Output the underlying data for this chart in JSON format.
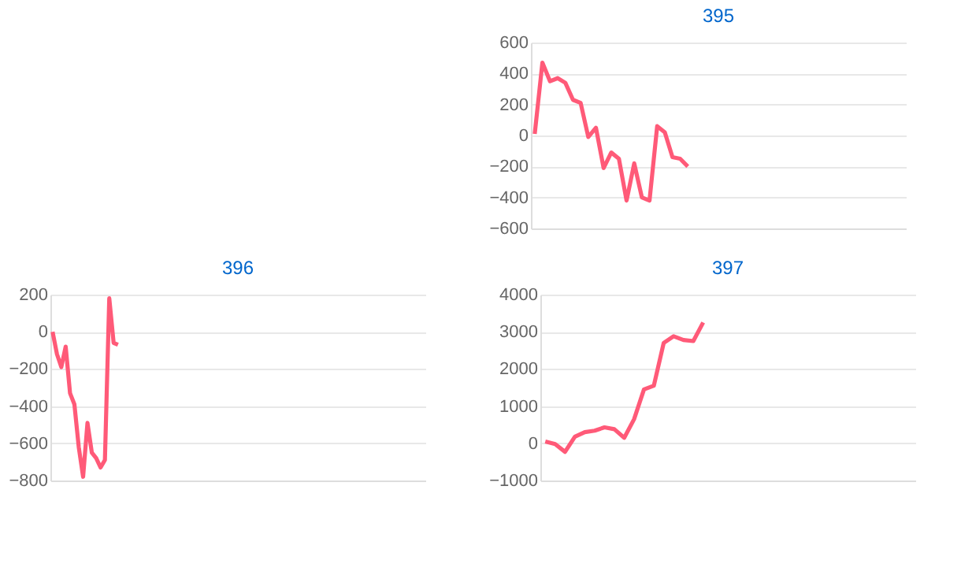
{
  "chart_data": [
    {
      "type": "line",
      "title": "395",
      "categories": [
        null,
        null,
        null,
        null,
        null,
        null,
        null,
        null,
        null,
        null,
        null,
        null,
        null,
        null,
        null,
        null,
        null,
        null,
        null,
        null,
        null,
        null,
        null,
        null,
        null,
        null,
        null,
        null,
        null,
        null,
        null,
        null,
        null,
        null,
        null,
        null,
        null,
        null,
        null,
        null,
        null,
        null,
        null,
        null,
        null,
        null,
        null,
        null,
        null
      ],
      "series": [
        {
          "color": "#ff5a78",
          "values": [
            10,
            470,
            350,
            370,
            340,
            230,
            210,
            -10,
            50,
            -210,
            -110,
            -150,
            -420,
            -180,
            -400,
            -420,
            60,
            20,
            -140,
            -150,
            -200,
            null,
            null,
            null,
            null,
            null,
            null,
            null,
            null,
            null,
            null,
            null,
            null,
            null,
            null,
            null,
            null,
            null,
            null,
            null,
            null,
            null,
            null,
            null,
            null,
            null,
            null,
            null,
            null
          ]
        }
      ],
      "ylim": [
        -600,
        600
      ],
      "yticks": [
        -600,
        -400,
        -200,
        0,
        200,
        400,
        600
      ],
      "grid": "y",
      "tick_labels": "y",
      "marker": "none",
      "line_style": "solid",
      "legend": false
    },
    {
      "type": "line",
      "title": "396",
      "categories": [
        null,
        null,
        null,
        null,
        null,
        null,
        null,
        null,
        null,
        null,
        null,
        null,
        null,
        null,
        null,
        null,
        null,
        null,
        null,
        null,
        null,
        null,
        null,
        null,
        null,
        null,
        null,
        null,
        null,
        null,
        null,
        null,
        null,
        null,
        null,
        null,
        null,
        null,
        null,
        null,
        null,
        null,
        null,
        null,
        null,
        null,
        null,
        null,
        null,
        null,
        null,
        null,
        null,
        null,
        null,
        null,
        null,
        null,
        null,
        null,
        null,
        null,
        null,
        null,
        null,
        null,
        null,
        null,
        null,
        null,
        null,
        null,
        null,
        null,
        null,
        null,
        null,
        null,
        null,
        null,
        null,
        null,
        null,
        null,
        null,
        null
      ],
      "series": [
        {
          "color": "#ff5a78",
          "values": [
            0,
            -120,
            -190,
            -80,
            -330,
            -390,
            -620,
            -780,
            -490,
            -650,
            -680,
            -730,
            -690,
            180,
            -60,
            -70,
            null,
            null,
            null,
            null,
            null,
            null,
            null,
            null,
            null,
            null,
            null,
            null,
            null,
            null,
            null,
            null,
            null,
            null,
            null,
            null,
            null,
            null,
            null,
            null,
            null,
            null,
            null,
            null,
            null,
            null,
            null,
            null,
            null,
            null,
            null,
            null,
            null,
            null,
            null,
            null,
            null,
            null,
            null,
            null,
            null,
            null,
            null,
            null,
            null,
            null,
            null,
            null,
            null,
            null,
            null,
            null,
            null,
            null,
            null,
            null,
            null,
            null,
            null,
            null,
            null,
            null,
            null,
            null,
            null,
            null
          ]
        }
      ],
      "ylim": [
        -800,
        200
      ],
      "yticks": [
        -800,
        -600,
        -400,
        -200,
        0,
        200
      ],
      "grid": "y",
      "tick_labels": "y",
      "marker": "none",
      "line_style": "solid",
      "legend": false
    },
    {
      "type": "line",
      "title": "397",
      "categories": [
        null,
        null,
        null,
        null,
        null,
        null,
        null,
        null,
        null,
        null,
        null,
        null,
        null,
        null,
        null,
        null,
        null,
        null,
        null,
        null,
        null,
        null,
        null,
        null,
        null,
        null,
        null,
        null,
        null,
        null,
        null,
        null,
        null,
        null,
        null,
        null,
        null,
        null
      ],
      "series": [
        {
          "color": "#ff5a78",
          "values": [
            50,
            -20,
            -230,
            180,
            300,
            340,
            430,
            380,
            150,
            650,
            1450,
            1550,
            2700,
            2880,
            2780,
            2750,
            3250,
            null,
            null,
            null,
            null,
            null,
            null,
            null,
            null,
            null,
            null,
            null,
            null,
            null,
            null,
            null,
            null,
            null,
            null,
            null,
            null,
            null
          ]
        }
      ],
      "ylim": [
        -1000,
        4000
      ],
      "yticks": [
        -1000,
        0,
        1000,
        2000,
        3000,
        4000
      ],
      "grid": "y",
      "tick_labels": "y",
      "marker": "none",
      "line_style": "solid",
      "legend": false
    }
  ]
}
